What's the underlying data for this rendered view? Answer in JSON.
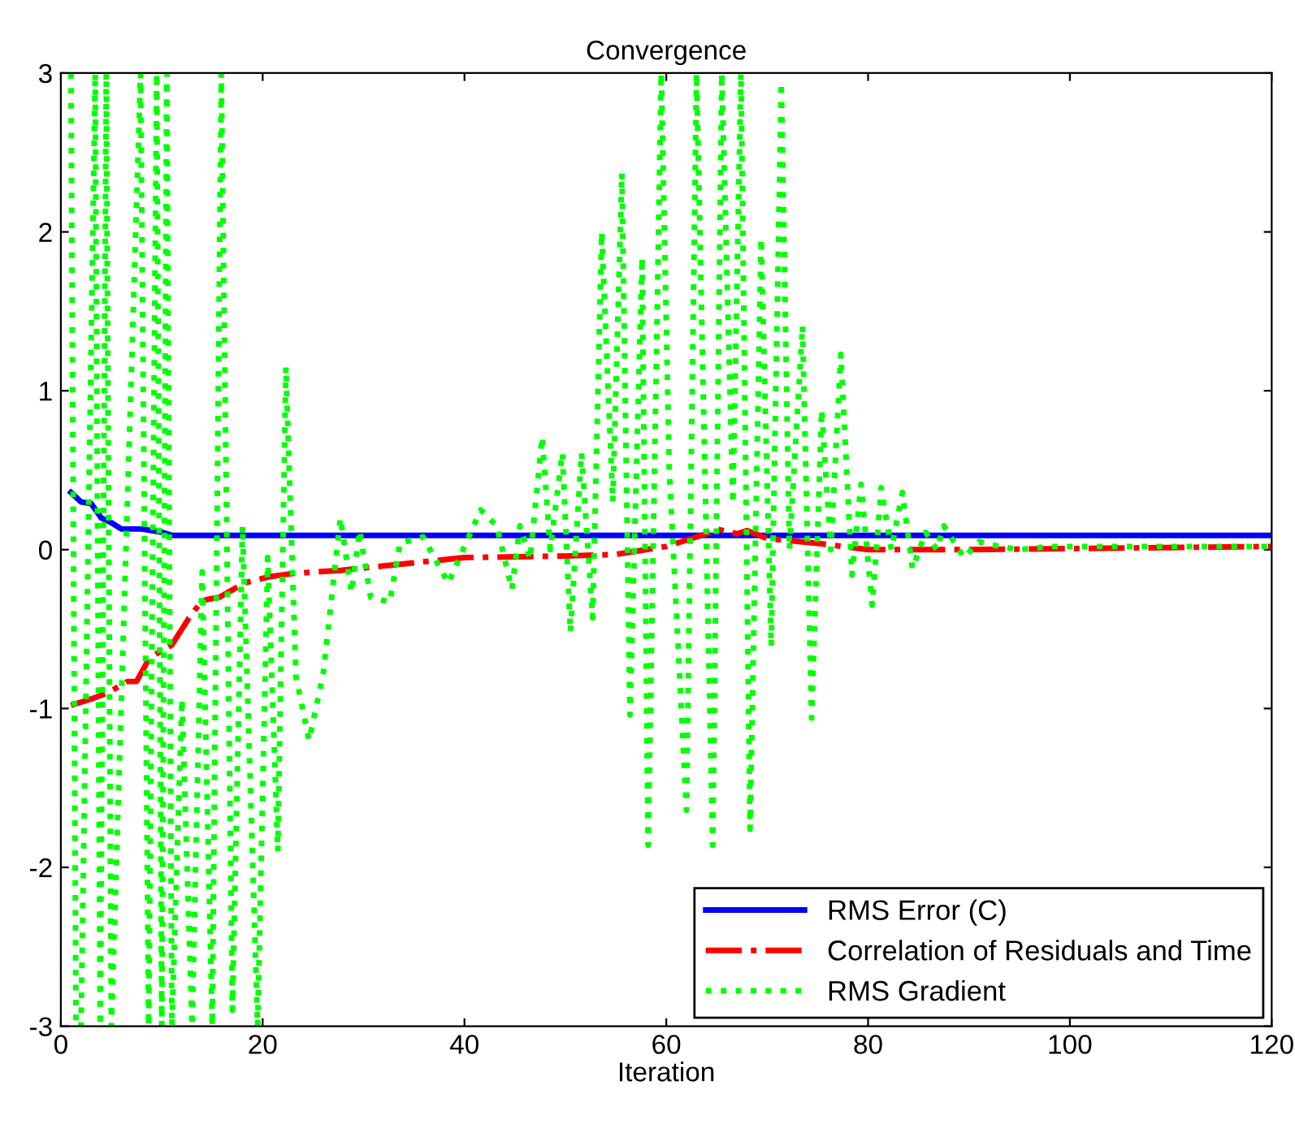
{
  "chart_data": {
    "type": "line",
    "title": "Convergence",
    "xlabel": "Iteration",
    "xlim": [
      0,
      120
    ],
    "ylim": [
      -3,
      3
    ],
    "xticks": [
      0,
      20,
      40,
      60,
      80,
      100,
      120
    ],
    "yticks": [
      -3,
      -2,
      -1,
      0,
      1,
      2,
      3
    ],
    "grid": false,
    "legend": "bottom right",
    "marker": "none",
    "series": [
      {
        "name": "RMS Error (C)",
        "color": "#0000ff",
        "line_style": "solid",
        "x": [
          1,
          2,
          3,
          4,
          5,
          6,
          8,
          10,
          11,
          120
        ],
        "values": [
          0.36,
          0.3,
          0.29,
          0.2,
          0.17,
          0.13,
          0.13,
          0.11,
          0.09,
          0.09
        ]
      },
      {
        "name": "Correlation of Residuals and Time",
        "color": "#ff0000",
        "line_style": "dashdot",
        "x": [
          1,
          3,
          4.7,
          6.6,
          7.5,
          8.8,
          11,
          12.7,
          14,
          15.7,
          18.2,
          20.7,
          23,
          27.8,
          40,
          50,
          55,
          57,
          60,
          64,
          65,
          67,
          68,
          70,
          75,
          80,
          90,
          120
        ],
        "values": [
          -0.98,
          -0.94,
          -0.9,
          -0.83,
          -0.83,
          -0.68,
          -0.6,
          -0.43,
          -0.32,
          -0.3,
          -0.21,
          -0.17,
          -0.15,
          -0.13,
          -0.05,
          -0.04,
          -0.03,
          -0.01,
          0.02,
          0.1,
          0.13,
          0.1,
          0.12,
          0.07,
          0.04,
          0.0,
          0.0,
          0.02
        ]
      },
      {
        "name": "RMS Gradient",
        "color": "#00ff00",
        "line_style": "dotted",
        "x": [
          1,
          1.5,
          2,
          3.4,
          3.9,
          4.5,
          5,
          7.9,
          8.7,
          9.5,
          10,
          10.5,
          11,
          12,
          13,
          14,
          15,
          15.9,
          17,
          18,
          19.5,
          20.5,
          21.5,
          22.3,
          23.3,
          24.6,
          26,
          27.7,
          28.8,
          29.6,
          30.7,
          32.6,
          33.6,
          35.9,
          38.4,
          41.6,
          43.2,
          44.7,
          45.5,
          46.5,
          47.7,
          48.5,
          49.7,
          50.5,
          51.6,
          52.7,
          53.6,
          54.7,
          55.6,
          56.4,
          57.6,
          58.2,
          59.5,
          60.3,
          62,
          63,
          64.6,
          65.5,
          66.6,
          67.4,
          68.3,
          69.4,
          70.4,
          71.4,
          72.2,
          73.5,
          74.4,
          75.4,
          76.3,
          77.3,
          78.4,
          79.3,
          80.4,
          81.3,
          82.3,
          83.4,
          84.4,
          85.7,
          86.8,
          87.5,
          88.5,
          89.5,
          91,
          93,
          95,
          98,
          120
        ],
        "values": [
          3,
          -3,
          -3,
          3,
          -3,
          3,
          -3,
          3,
          -3,
          3,
          -3,
          3,
          -3,
          -0.94,
          -3,
          -0.14,
          -3,
          3,
          -2.9,
          0.15,
          -3,
          -0.05,
          -1.9,
          1.15,
          -0.8,
          -1.2,
          -0.78,
          0.2,
          -0.27,
          0.12,
          -0.3,
          -0.33,
          0.04,
          0.08,
          -0.21,
          0.25,
          0.15,
          -0.25,
          0.15,
          -0.06,
          0.71,
          0.0,
          0.61,
          -0.52,
          0.61,
          -0.43,
          2.0,
          0.3,
          2.37,
          -1.04,
          1.84,
          -1.86,
          3,
          0.49,
          -1.64,
          3,
          -1.86,
          3,
          0.29,
          3,
          -1.76,
          1.96,
          -0.61,
          2.94,
          0.0,
          1.41,
          -1.06,
          0.88,
          0.0,
          1.23,
          -0.16,
          0.41,
          -0.35,
          0.39,
          0.0,
          0.36,
          -0.12,
          0.11,
          0.0,
          0.15,
          0.05,
          -0.05,
          0.05,
          0.02,
          0.0,
          0.02,
          0.02
        ]
      }
    ]
  }
}
